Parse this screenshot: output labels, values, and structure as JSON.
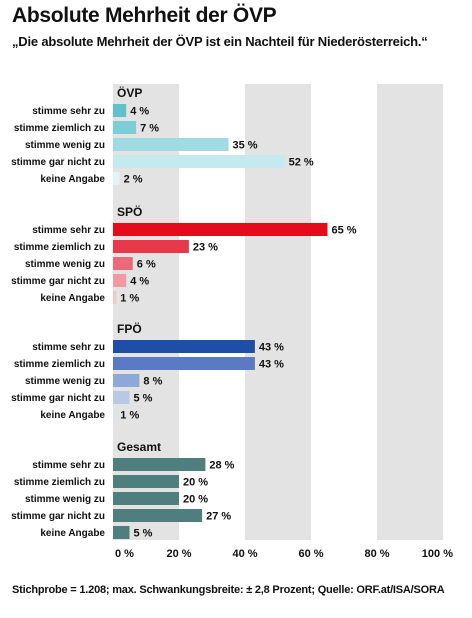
{
  "title": "Absolute Mehrheit der ÖVP",
  "subtitle": "„Die absolute Mehrheit der ÖVP ist ein Nachteil für Niederösterreich.“",
  "footer": "Stichprobe = 1.208; max. Schwankungsbreite: ± 2,8 Prozent; Quelle: ORF.at/ISA/SORA",
  "chart_data": {
    "type": "bar",
    "orientation": "horizontal",
    "title": "Absolute Mehrheit der ÖVP",
    "subtitle": "„Die absolute Mehrheit der ÖVP ist ein Nachteil für Niederösterreich.“",
    "xlim": [
      0,
      100
    ],
    "x_ticks": [
      "0 %",
      "20 %",
      "40 %",
      "60 %",
      "80 %",
      "100 %"
    ],
    "value_suffix": " %",
    "grid": "alternating vertical bands",
    "groups": [
      {
        "name": "ÖVP",
        "categories": [
          "stimme sehr zu",
          "stimme ziemlich zu",
          "stimme wenig zu",
          "stimme gar nicht zu",
          "keine Angabe"
        ],
        "values": [
          4,
          7,
          35,
          52,
          2
        ],
        "colors": [
          "#5ec1cc",
          "#7ccdd6",
          "#9fdbe2",
          "#c4e9ee",
          "#e3f4f6"
        ]
      },
      {
        "name": "SPÖ",
        "categories": [
          "stimme sehr zu",
          "stimme ziemlich zu",
          "stimme wenig zu",
          "stimme gar nicht zu",
          "keine Angabe"
        ],
        "values": [
          65,
          23,
          6,
          4,
          1
        ],
        "colors": [
          "#e30b1c",
          "#e8394b",
          "#ec6a78",
          "#f19aa5",
          "#f6c6cd"
        ]
      },
      {
        "name": "FPÖ",
        "categories": [
          "stimme sehr zu",
          "stimme ziemlich zu",
          "stimme wenig zu",
          "stimme gar nicht zu",
          "keine Angabe"
        ],
        "values": [
          43,
          43,
          8,
          5,
          1
        ],
        "colors": [
          "#1f4ea6",
          "#5a7bc4",
          "#8ea8d8",
          "#b8c9e6",
          "#d9e3f2"
        ]
      },
      {
        "name": "Gesamt",
        "categories": [
          "stimme sehr zu",
          "stimme ziemlich zu",
          "stimme wenig zu",
          "stimme gar nicht zu",
          "keine Angabe"
        ],
        "values": [
          28,
          20,
          20,
          27,
          5
        ],
        "colors": [
          "#4e7e7e",
          "#4e7e7e",
          "#4e7e7e",
          "#4e7e7e",
          "#4e7e7e"
        ]
      }
    ]
  }
}
